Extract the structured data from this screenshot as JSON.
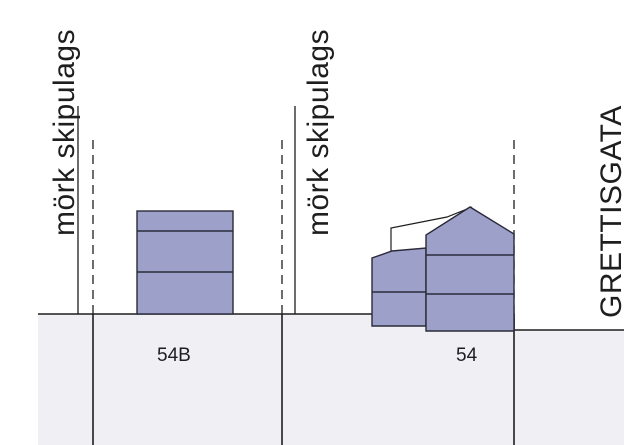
{
  "diagram": {
    "left_boundary_label": "mörk skipulags",
    "middle_boundary_label": "mörk skipulags",
    "street_label": "GRETTISGATA",
    "lot_left_number": "54B",
    "lot_right_number": "54"
  },
  "colors": {
    "building_fill": "#9da0c8",
    "building_stroke": "#2a2a3a",
    "ground_fill": "#f0f0f4",
    "line": "#1e1e1e"
  }
}
